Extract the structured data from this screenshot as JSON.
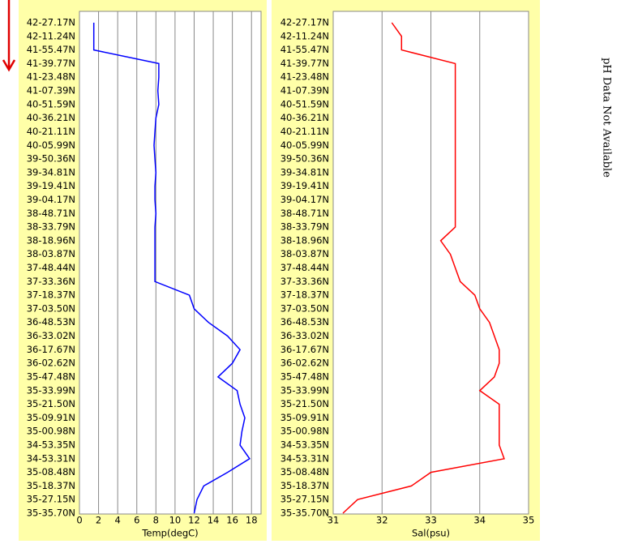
{
  "chart_data": [
    {
      "type": "line",
      "xlabel": "Temp(degC)",
      "color": "#0000ff",
      "categories": [
        "42-27.17N",
        "42-11.24N",
        "41-55.47N",
        "41-39.77N",
        "41-23.48N",
        "41-07.39N",
        "40-51.59N",
        "40-36.21N",
        "40-21.11N",
        "40-05.99N",
        "39-50.36N",
        "39-34.81N",
        "39-19.41N",
        "39-04.17N",
        "38-48.71N",
        "38-33.79N",
        "38-18.96N",
        "38-03.87N",
        "37-48.44N",
        "37-33.36N",
        "37-18.37N",
        "37-03.50N",
        "36-48.53N",
        "36-33.02N",
        "36-17.67N",
        "36-02.62N",
        "35-47.48N",
        "35-33.99N",
        "35-21.50N",
        "35-09.91N",
        "35-00.98N",
        "34-53.35N",
        "34-53.31N",
        "35-08.48N",
        "35-18.37N",
        "35-27.15N",
        "35-35.70N"
      ],
      "values": [
        1.5,
        1.5,
        1.5,
        8.3,
        8.3,
        8.2,
        8.3,
        8.0,
        7.9,
        7.8,
        7.9,
        8.0,
        7.9,
        7.9,
        8.0,
        7.9,
        7.9,
        7.9,
        7.9,
        7.9,
        11.5,
        12,
        13.5,
        15.5,
        16.8,
        16,
        14.5,
        16.5,
        16.8,
        17.3,
        17,
        16.8,
        17.8,
        15.5,
        13,
        12.3,
        12
      ],
      "xlim": [
        0,
        19
      ],
      "xticks": [
        0,
        2,
        4,
        6,
        8,
        10,
        12,
        14,
        16,
        18
      ],
      "grid": true
    },
    {
      "type": "line",
      "xlabel": "Sal(psu)",
      "color": "#ff0000",
      "categories": [
        "42-27.17N",
        "42-11.24N",
        "41-55.47N",
        "41-39.77N",
        "41-23.48N",
        "41-07.39N",
        "40-51.59N",
        "40-36.21N",
        "40-21.11N",
        "40-05.99N",
        "39-50.36N",
        "39-34.81N",
        "39-19.41N",
        "39-04.17N",
        "38-48.71N",
        "38-33.79N",
        "38-18.96N",
        "38-03.87N",
        "37-48.44N",
        "37-33.36N",
        "37-18.37N",
        "37-03.50N",
        "36-48.53N",
        "36-33.02N",
        "36-17.67N",
        "36-02.62N",
        "35-47.48N",
        "35-33.99N",
        "35-21.50N",
        "35-09.91N",
        "35-00.98N",
        "34-53.35N",
        "34-53.31N",
        "35-08.48N",
        "35-18.37N",
        "35-27.15N",
        "35-35.70N"
      ],
      "values": [
        32.2,
        32.4,
        32.4,
        33.5,
        33.5,
        33.5,
        33.5,
        33.5,
        33.5,
        33.5,
        33.5,
        33.5,
        33.5,
        33.5,
        33.5,
        33.5,
        33.2,
        33.4,
        33.5,
        33.6,
        33.9,
        34.0,
        34.2,
        34.3,
        34.4,
        34.4,
        34.3,
        34.0,
        34.4,
        34.4,
        34.4,
        34.4,
        34.5,
        33.0,
        32.6,
        31.5,
        31.2
      ],
      "xlim": [
        31,
        35
      ],
      "xticks": [
        31,
        32,
        33,
        34,
        35
      ],
      "grid": true
    }
  ],
  "ph_note": "pH Data Not Available"
}
